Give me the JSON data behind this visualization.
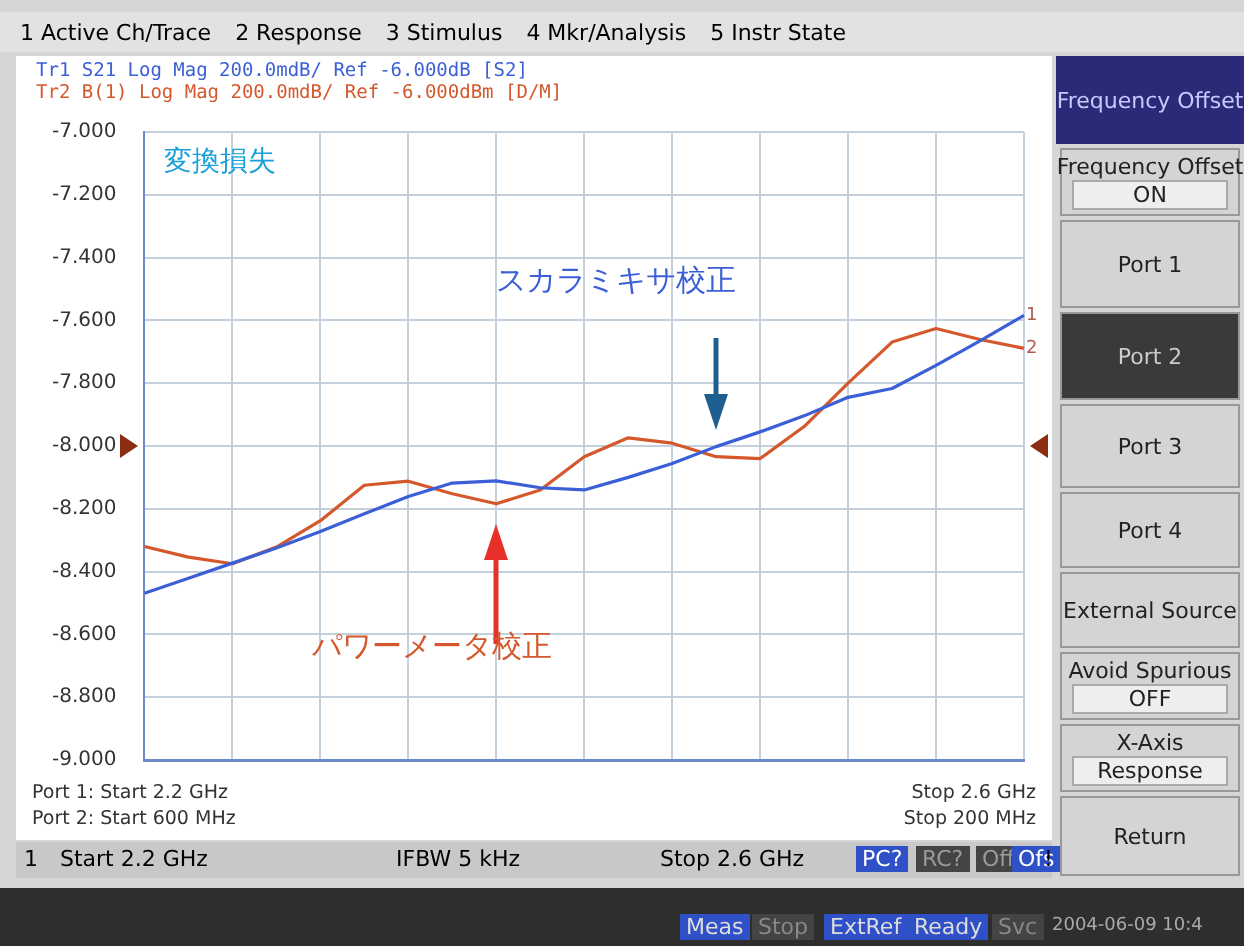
{
  "chart_data": {
    "type": "line",
    "title": "変換損失",
    "categories": [
      null,
      null,
      null,
      null,
      null,
      null,
      null,
      null,
      null,
      null,
      null,
      null,
      null,
      null,
      null,
      null,
      null,
      null,
      null,
      null,
      null
    ],
    "ylim": [
      -9,
      -7
    ],
    "yticks": [
      {
        "value": -9,
        "label": "-9.000"
      },
      {
        "value": -8.8,
        "label": "-8.800"
      },
      {
        "value": -8.6,
        "label": "-8.600"
      },
      {
        "value": -8.4,
        "label": "-8.400"
      },
      {
        "value": -8.2,
        "label": "-8.200"
      },
      {
        "value": -8,
        "label": "-8.000"
      },
      {
        "value": -7.8,
        "label": "-7.800"
      },
      {
        "value": -7.6,
        "label": "-7.600"
      },
      {
        "value": -7.4,
        "label": "-7.400"
      },
      {
        "value": -7.2,
        "label": "-7.200"
      },
      {
        "value": -7,
        "label": "-7.000"
      }
    ],
    "tick_labels": "y",
    "grid": true,
    "legend": false,
    "marker": "none",
    "line_style": "solid",
    "series": [
      {
        "name": "スカラミキサ校正",
        "color": "#3b5fd6",
        "values": [
          -8.469,
          -8.421,
          -8.373,
          -8.325,
          -8.272,
          -8.216,
          -8.161,
          -8.118,
          -8.111,
          -8.133,
          -8.14,
          -8.1,
          -8.056,
          -8.002,
          -7.955,
          -7.904,
          -7.845,
          -7.817,
          -7.743,
          -7.665,
          -7.584
        ]
      },
      {
        "name": "パワーメータ校正",
        "color": "#d4582c",
        "values": [
          -8.32,
          -8.354,
          -8.375,
          -8.322,
          -8.238,
          -8.125,
          -8.112,
          -8.152,
          -8.184,
          -8.14,
          -8.034,
          -7.974,
          -7.991,
          -8.034,
          -8.04,
          -7.938,
          -7.8,
          -7.669,
          -7.626,
          -7.661,
          -7.689
        ]
      }
    ],
    "annotations": [
      "1 Active Ch/Trace",
      "2 Response",
      "3 Stimulus",
      "4 Mkr/Analysis",
      "5 Instr State",
      "Tr1 S21 Log Mag 200.0mdB/ Ref -6.000dB [S2]",
      "Tr2 B(1) Log Mag 200.0mdB/ Ref -6.000dBm [D/M]",
      "Port 1: Start 2.2 GHz",
      "Port 2: Start 600 MHz",
      "Stop 2.6 GHz",
      "Stop 200 MHz",
      "1",
      "Start 2.2 GHz",
      "IFBW 5 kHz",
      "Stop 2.6 GHz",
      "PC?",
      "RC?",
      "Off",
      "Ofs",
      "!",
      "Meas",
      "Stop",
      "ExtRef",
      "Ready",
      "Svc",
      "2004-06-09 10:4",
      "Frequency Offset",
      "Frequency Offset",
      "ON",
      "Port 1",
      "Port 2",
      "Port 3",
      "Port 4",
      "External Source",
      "Avoid Spurious",
      "OFF",
      "X-Axis",
      "Response",
      "Return",
      {
        "text": "1",
        "y": -7.584
      },
      {
        "text": "2",
        "y": -7.689
      }
    ]
  }
}
